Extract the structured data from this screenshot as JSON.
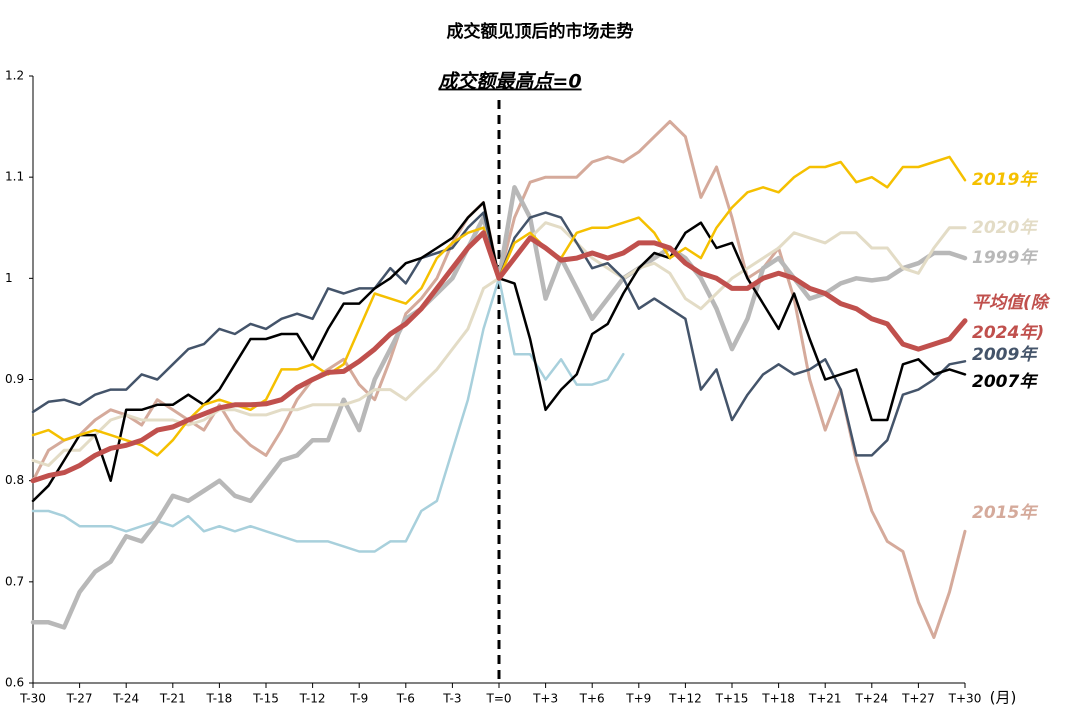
{
  "chart_data": {
    "type": "line",
    "title": "成交额见顶后的市场走势",
    "annotation": "成交额最高点=0",
    "x_label": "(月)",
    "x": [
      -30,
      -29,
      -28,
      -27,
      -26,
      -25,
      -24,
      -23,
      -22,
      -21,
      -20,
      -19,
      -18,
      -17,
      -16,
      -15,
      -14,
      -13,
      -12,
      -11,
      -10,
      -9,
      -8,
      -7,
      -6,
      -5,
      -4,
      -3,
      -2,
      -1,
      0,
      1,
      2,
      3,
      4,
      5,
      6,
      7,
      8,
      9,
      10,
      11,
      12,
      13,
      14,
      15,
      16,
      17,
      18,
      19,
      20,
      21,
      22,
      23,
      24,
      25,
      26,
      27,
      28,
      29,
      30
    ],
    "xlim": [
      -30,
      30
    ],
    "xticks": [
      {
        "value": -30,
        "label": "T-30"
      },
      {
        "value": -27,
        "label": "T-27"
      },
      {
        "value": -24,
        "label": "T-24"
      },
      {
        "value": -21,
        "label": "T-21"
      },
      {
        "value": -18,
        "label": "T-18"
      },
      {
        "value": -15,
        "label": "T-15"
      },
      {
        "value": -12,
        "label": "T-12"
      },
      {
        "value": -9,
        "label": "T-9"
      },
      {
        "value": -6,
        "label": "T-6"
      },
      {
        "value": -3,
        "label": "T-3"
      },
      {
        "value": 0,
        "label": "T=0"
      },
      {
        "value": 3,
        "label": "T+3"
      },
      {
        "value": 6,
        "label": "T+6"
      },
      {
        "value": 9,
        "label": "T+9"
      },
      {
        "value": 12,
        "label": "T+12"
      },
      {
        "value": 15,
        "label": "T+15"
      },
      {
        "value": 18,
        "label": "T+18"
      },
      {
        "value": 21,
        "label": "T+21"
      },
      {
        "value": 24,
        "label": "T+24"
      },
      {
        "value": 27,
        "label": "T+27"
      },
      {
        "value": 30,
        "label": "T+30"
      }
    ],
    "ylim": [
      0.6,
      1.2
    ],
    "yticks": [
      0.6,
      0.7,
      0.8,
      0.9,
      1,
      1.1,
      1.2
    ],
    "grid": false,
    "series": [
      {
        "color": "#a8d0dc",
        "width": 2.5,
        "values": [
          0.77,
          0.77,
          0.765,
          0.755,
          0.755,
          0.755,
          0.75,
          0.755,
          0.76,
          0.755,
          0.765,
          0.75,
          0.755,
          0.75,
          0.755,
          0.75,
          0.745,
          0.74,
          0.74,
          0.74,
          0.735,
          0.73,
          0.73,
          0.74,
          0.74,
          0.77,
          0.78,
          0.83,
          0.88,
          0.95,
          1.0,
          0.925,
          0.925,
          0.9,
          0.92,
          0.895,
          0.895,
          0.9,
          0.925,
          null,
          null,
          null,
          null,
          null,
          null,
          null,
          null,
          null,
          null,
          null,
          null,
          null,
          null,
          null,
          null,
          null,
          null,
          null,
          null,
          null,
          null
        ]
      },
      {
        "name": "2015年",
        "color": "#d5aa9b",
        "width": 3,
        "values": [
          0.8,
          0.83,
          0.84,
          0.845,
          0.86,
          0.87,
          0.865,
          0.855,
          0.88,
          0.87,
          0.86,
          0.85,
          0.875,
          0.85,
          0.835,
          0.825,
          0.85,
          0.88,
          0.9,
          0.91,
          0.92,
          0.895,
          0.88,
          0.92,
          0.965,
          0.98,
          1.0,
          1.035,
          1.06,
          1.075,
          1.0,
          1.06,
          1.095,
          1.1,
          1.1,
          1.1,
          1.115,
          1.12,
          1.115,
          1.125,
          1.14,
          1.155,
          1.14,
          1.08,
          1.11,
          1.06,
          1.0,
          1.01,
          1.03,
          0.98,
          0.9,
          0.85,
          0.89,
          0.82,
          0.77,
          0.74,
          0.73,
          0.68,
          0.645,
          0.69,
          0.75
        ]
      },
      {
        "name": "1999年",
        "color": "#b8b8b8",
        "width": 4.5,
        "values": [
          0.66,
          0.66,
          0.655,
          0.69,
          0.71,
          0.72,
          0.745,
          0.74,
          0.76,
          0.785,
          0.78,
          0.79,
          0.8,
          0.785,
          0.78,
          0.8,
          0.82,
          0.825,
          0.84,
          0.84,
          0.88,
          0.85,
          0.9,
          0.93,
          0.96,
          0.97,
          0.985,
          1.0,
          1.03,
          1.06,
          1.0,
          1.09,
          1.06,
          0.98,
          1.02,
          0.99,
          0.96,
          0.98,
          1.0,
          1.01,
          1.02,
          1.03,
          1.02,
          1.0,
          0.97,
          0.93,
          0.96,
          1.01,
          1.02,
          1.0,
          0.98,
          0.985,
          0.995,
          1.0,
          0.998,
          1.0,
          1.01,
          1.015,
          1.025,
          1.025,
          1.02
        ]
      },
      {
        "name": "2020年",
        "color": "#e3dcc6",
        "width": 3,
        "values": [
          0.82,
          0.815,
          0.83,
          0.83,
          0.845,
          0.86,
          0.865,
          0.86,
          0.86,
          0.86,
          0.855,
          0.86,
          0.87,
          0.87,
          0.865,
          0.865,
          0.87,
          0.87,
          0.875,
          0.875,
          0.875,
          0.88,
          0.89,
          0.89,
          0.88,
          0.895,
          0.91,
          0.93,
          0.95,
          0.99,
          1.0,
          1.02,
          1.04,
          1.055,
          1.05,
          1.035,
          1.02,
          1.01,
          1.0,
          1.01,
          1.015,
          1.005,
          0.98,
          0.97,
          0.985,
          1.0,
          1.01,
          1.02,
          1.03,
          1.045,
          1.04,
          1.035,
          1.045,
          1.045,
          1.03,
          1.03,
          1.01,
          1.005,
          1.03,
          1.05,
          1.05
        ]
      },
      {
        "name": "2009年",
        "color": "#44546a",
        "width": 2.5,
        "values": [
          0.868,
          0.878,
          0.88,
          0.875,
          0.885,
          0.89,
          0.89,
          0.905,
          0.9,
          0.915,
          0.93,
          0.935,
          0.95,
          0.945,
          0.955,
          0.95,
          0.96,
          0.965,
          0.96,
          0.99,
          0.985,
          0.99,
          0.99,
          1.01,
          0.995,
          1.02,
          1.025,
          1.03,
          1.05,
          1.065,
          1.0,
          1.04,
          1.06,
          1.065,
          1.06,
          1.035,
          1.01,
          1.015,
          1.0,
          0.97,
          0.98,
          0.97,
          0.96,
          0.89,
          0.91,
          0.86,
          0.885,
          0.905,
          0.915,
          0.905,
          0.91,
          0.92,
          0.89,
          0.825,
          0.825,
          0.84,
          0.885,
          0.89,
          0.9,
          0.915,
          0.918
        ]
      },
      {
        "name": "2007年",
        "color": "#000000",
        "width": 2.5,
        "values": [
          0.78,
          0.795,
          0.82,
          0.845,
          0.845,
          0.8,
          0.87,
          0.87,
          0.875,
          0.875,
          0.885,
          0.875,
          0.89,
          0.915,
          0.94,
          0.94,
          0.945,
          0.945,
          0.92,
          0.95,
          0.975,
          0.975,
          0.99,
          1.0,
          1.015,
          1.02,
          1.03,
          1.04,
          1.06,
          1.075,
          1.0,
          0.995,
          0.94,
          0.87,
          0.89,
          0.905,
          0.945,
          0.955,
          0.985,
          1.01,
          1.025,
          1.02,
          1.045,
          1.055,
          1.03,
          1.035,
          1.0,
          0.975,
          0.95,
          0.985,
          0.94,
          0.9,
          0.905,
          0.91,
          0.86,
          0.86,
          0.915,
          0.92,
          0.905,
          0.91,
          0.905
        ]
      },
      {
        "name": "2019年",
        "color": "#f5c000",
        "width": 2.5,
        "values": [
          0.845,
          0.85,
          0.84,
          0.845,
          0.85,
          0.845,
          0.84,
          0.835,
          0.825,
          0.84,
          0.86,
          0.875,
          0.88,
          0.875,
          0.87,
          0.88,
          0.91,
          0.91,
          0.915,
          0.905,
          0.915,
          0.95,
          0.985,
          0.98,
          0.975,
          0.99,
          1.02,
          1.035,
          1.045,
          1.05,
          1.0,
          1.035,
          1.045,
          1.03,
          1.02,
          1.045,
          1.05,
          1.05,
          1.055,
          1.06,
          1.045,
          1.02,
          1.03,
          1.02,
          1.05,
          1.07,
          1.085,
          1.09,
          1.085,
          1.1,
          1.11,
          1.11,
          1.115,
          1.095,
          1.1,
          1.09,
          1.11,
          1.11,
          1.115,
          1.12,
          1.097
        ]
      },
      {
        "name": "平均值(除2024年)",
        "color": "#c0504d",
        "width": 5,
        "values": [
          0.8,
          0.805,
          0.808,
          0.815,
          0.825,
          0.832,
          0.835,
          0.84,
          0.85,
          0.853,
          0.86,
          0.866,
          0.872,
          0.875,
          0.875,
          0.876,
          0.88,
          0.892,
          0.9,
          0.907,
          0.908,
          0.918,
          0.93,
          0.945,
          0.955,
          0.97,
          0.99,
          1.01,
          1.03,
          1.045,
          1.0,
          1.02,
          1.04,
          1.03,
          1.018,
          1.02,
          1.025,
          1.02,
          1.025,
          1.035,
          1.035,
          1.03,
          1.015,
          1.005,
          1.0,
          0.99,
          0.99,
          1.0,
          1.005,
          1.0,
          0.99,
          0.985,
          0.975,
          0.97,
          0.96,
          0.955,
          0.935,
          0.93,
          0.935,
          0.94,
          0.958
        ]
      }
    ]
  }
}
